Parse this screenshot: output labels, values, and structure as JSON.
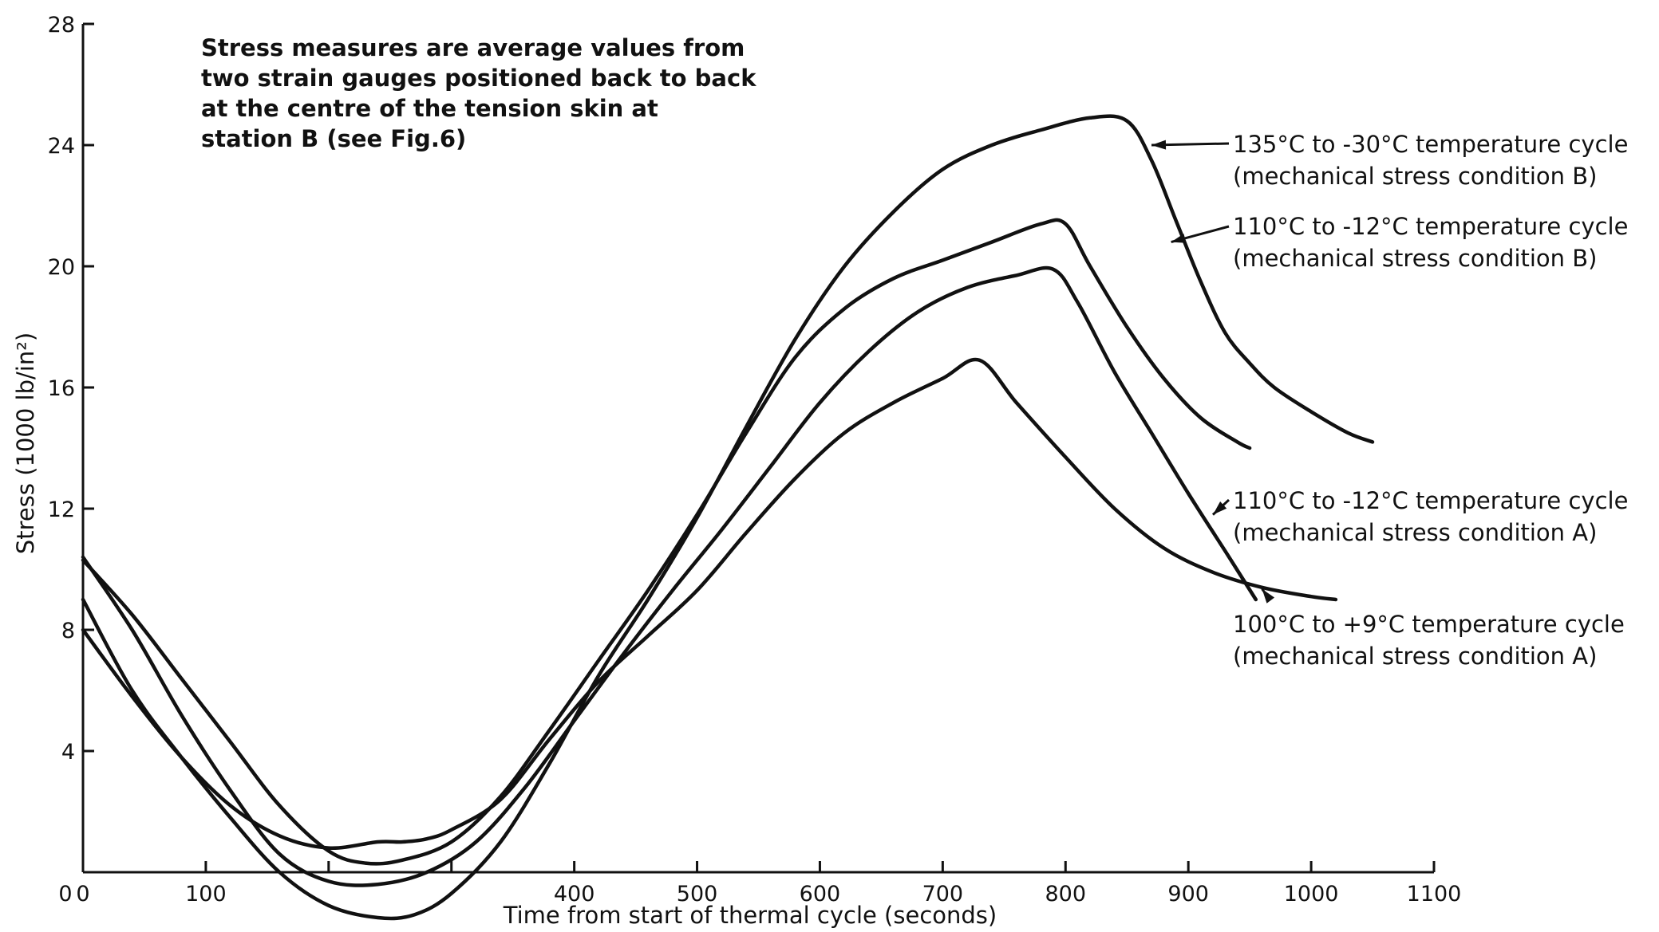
{
  "chart_data": {
    "type": "line",
    "title": "",
    "xlabel": "Time from start of thermal cycle (seconds)",
    "ylabel": "Stress (1000 lb/in²)",
    "xlim": [
      0,
      1100
    ],
    "ylim": [
      0,
      28
    ],
    "x_ticks": [
      0,
      100,
      200,
      300,
      400,
      500,
      600,
      700,
      800,
      900,
      1000,
      1100
    ],
    "x_tick_labels": [
      "0",
      "100",
      "",
      "",
      "400",
      "500",
      "600",
      "700",
      "800",
      "900",
      "1000",
      "1100"
    ],
    "y_ticks": [
      0,
      4,
      8,
      12,
      16,
      20,
      24,
      28
    ],
    "y_tick_labels": [
      "",
      "4",
      "8",
      "12",
      "16",
      "20",
      "24",
      "28"
    ],
    "grid": false,
    "note": [
      "Stress measures are average values from",
      "two strain gauges positioned back to back",
      "at the centre of the tension skin at",
      "station B (see Fig.6)"
    ],
    "series": [
      {
        "label_lines": [
          "135°C to -30°C temperature cycle",
          "(mechanical stress condition B)"
        ],
        "x": [
          0,
          40,
          80,
          120,
          160,
          200,
          240,
          270,
          300,
          340,
          380,
          420,
          460,
          500,
          540,
          580,
          620,
          660,
          700,
          740,
          780,
          820,
          850,
          870,
          890,
          910,
          930,
          950,
          970,
          1000,
          1030,
          1050
        ],
        "y": [
          9.0,
          6.0,
          3.8,
          1.8,
          0.0,
          -1.1,
          -1.5,
          -1.4,
          -0.7,
          1.0,
          3.6,
          6.5,
          9.0,
          11.7,
          14.7,
          17.6,
          20.0,
          21.8,
          23.2,
          24.0,
          24.5,
          24.9,
          24.8,
          23.5,
          21.5,
          19.5,
          17.8,
          16.8,
          16.0,
          15.2,
          14.5,
          14.2
        ]
      },
      {
        "label_lines": [
          "110°C to -12°C temperature cycle",
          "(mechanical stress condition B)"
        ],
        "x": [
          0,
          40,
          80,
          120,
          160,
          200,
          230,
          260,
          300,
          340,
          380,
          420,
          460,
          500,
          540,
          580,
          620,
          660,
          700,
          740,
          780,
          800,
          820,
          850,
          880,
          910,
          940,
          950
        ],
        "y": [
          10.3,
          8.5,
          6.4,
          4.3,
          2.2,
          0.7,
          0.3,
          0.4,
          1.0,
          2.5,
          4.7,
          7.0,
          9.3,
          11.8,
          14.5,
          17.0,
          18.6,
          19.6,
          20.2,
          20.8,
          21.4,
          21.4,
          20.0,
          18.0,
          16.3,
          15.0,
          14.2,
          14.0
        ]
      },
      {
        "label_lines": [
          "110°C to -12°C temperature cycle",
          "(mechanical stress condition A)"
        ],
        "x": [
          0,
          40,
          80,
          120,
          160,
          200,
          240,
          280,
          320,
          360,
          400,
          440,
          480,
          520,
          560,
          600,
          640,
          680,
          720,
          760,
          790,
          810,
          840,
          870,
          900,
          930,
          955
        ],
        "y": [
          10.4,
          8.0,
          5.2,
          2.7,
          0.6,
          -0.3,
          -0.4,
          0.0,
          1.0,
          2.8,
          5.0,
          7.2,
          9.3,
          11.3,
          13.4,
          15.5,
          17.2,
          18.5,
          19.3,
          19.7,
          19.9,
          18.8,
          16.5,
          14.5,
          12.5,
          10.6,
          9.0
        ]
      },
      {
        "label_lines": [
          "100°C to +9°C temperature cycle",
          "(mechanical stress condition A)"
        ],
        "x": [
          0,
          40,
          80,
          120,
          160,
          200,
          240,
          260,
          280,
          300,
          340,
          380,
          420,
          460,
          500,
          540,
          580,
          620,
          660,
          700,
          730,
          760,
          800,
          840,
          880,
          920,
          960,
          1000,
          1020
        ],
        "y": [
          8.0,
          5.8,
          3.8,
          2.2,
          1.2,
          0.8,
          1.0,
          1.0,
          1.1,
          1.4,
          2.4,
          4.4,
          6.3,
          7.8,
          9.3,
          11.2,
          13.0,
          14.5,
          15.5,
          16.3,
          16.9,
          15.5,
          13.7,
          12.0,
          10.7,
          9.9,
          9.4,
          9.1,
          9.0
        ]
      }
    ]
  }
}
